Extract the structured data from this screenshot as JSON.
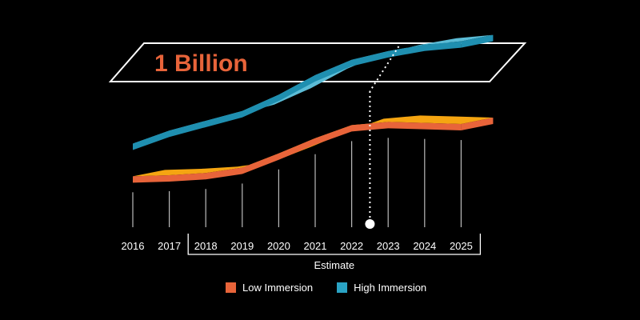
{
  "chart_data": {
    "type": "area",
    "style": "3d-stacked-ribbon",
    "x": [
      "2016",
      "2017",
      "2018",
      "2019",
      "2020",
      "2021",
      "2022",
      "2023",
      "2024",
      "2025"
    ],
    "estimate_range": [
      "2018",
      "2025"
    ],
    "estimate_label": "Estimate",
    "annotation": {
      "text": "1 Billion",
      "marker_x": "2022.5"
    },
    "series": [
      {
        "name": "Low Immersion",
        "color": "#f5a511",
        "edge_color": "#e8643a",
        "values": [
          0.13,
          0.14,
          0.16,
          0.21,
          0.34,
          0.48,
          0.6,
          0.63,
          0.62,
          0.61
        ]
      },
      {
        "name": "High Immersion",
        "color": "#5bbcd6",
        "edge_color": "#1f8fb0",
        "values": [
          0.43,
          0.55,
          0.64,
          0.73,
          0.88,
          1.06,
          1.2,
          1.28,
          1.34,
          1.37
        ]
      }
    ],
    "legend": [
      {
        "label": "Low Immersion",
        "color": "#e8643a"
      },
      {
        "label": "High Immersion",
        "color": "#2aa3c4"
      }
    ]
  }
}
